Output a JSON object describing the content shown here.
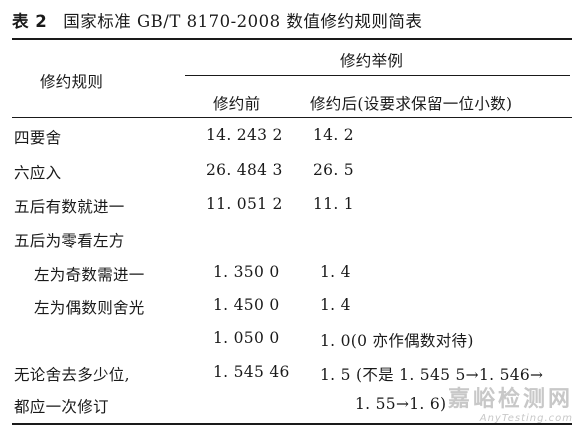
{
  "caption": {
    "number": "表 2",
    "title": "国家标准 GB/T 8170-2008 数值修约规则简表"
  },
  "header": {
    "rule_col": "修约规则",
    "example_group": "修约举例",
    "before_col": "修约前",
    "after_col": "修约后(设要求保留一位小数)"
  },
  "rows": [
    {
      "rule": "四要舍",
      "before": "14. 243 2",
      "after": "14. 2"
    },
    {
      "rule": "六应入",
      "before": "26. 484 3",
      "after": "26. 5"
    },
    {
      "rule": "五后有数就进一",
      "before": "11. 051 2",
      "after": "11. 1"
    },
    {
      "rule": "五后为零看左方",
      "before": "",
      "after": ""
    },
    {
      "rule": "左为奇数需进一",
      "before": "1. 350 0",
      "after": "1. 4"
    },
    {
      "rule": "左为偶数则舍光",
      "before": "1. 450 0",
      "after": "1. 4"
    },
    {
      "rule": "",
      "before": "1. 050 0",
      "after": "1. 0(0 亦作偶数对待)"
    },
    {
      "rule": "无论舍去多少位,",
      "before": "1. 545 46",
      "after": "1. 5 (不是 1. 545 5→1. 546→"
    },
    {
      "rule": "都应一次修订",
      "before": "",
      "after": "1. 55→1. 6)"
    }
  ],
  "watermark": {
    "line1": "嘉峪检测网",
    "line2": "AnyTesting.com"
  }
}
